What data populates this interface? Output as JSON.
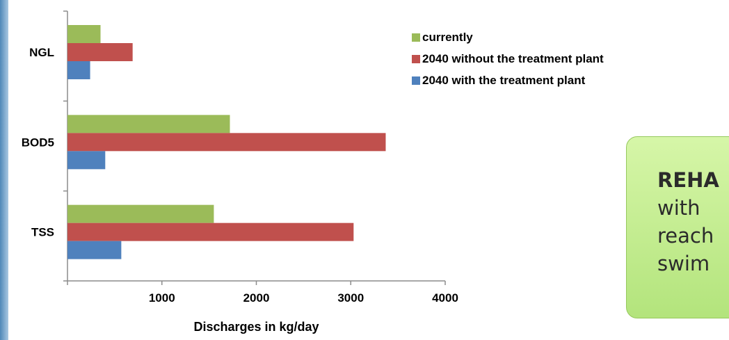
{
  "chart_data": {
    "type": "bar",
    "orientation": "horizontal",
    "categories": [
      "NGL",
      "BOD5",
      "TSS"
    ],
    "series": [
      {
        "name": "currently",
        "color": "#9bbb59",
        "values": [
          350,
          1720,
          1550
        ]
      },
      {
        "name": "2040 without the treatment plant",
        "color": "#c0504d",
        "values": [
          690,
          3370,
          3030
        ]
      },
      {
        "name": "2040 with the treatment plant",
        "color": "#4f81bd",
        "values": [
          240,
          400,
          570
        ]
      }
    ],
    "xticks": [
      "1000",
      "2000",
      "3000",
      "4000"
    ],
    "xlim": [
      0,
      4000
    ],
    "xlabel": "Discharges in kg/day",
    "ylabel": "",
    "title": "",
    "grid": false,
    "legend_position": "top-right"
  },
  "callout": {
    "lines": [
      "REHA",
      "with",
      "reach",
      "swim"
    ]
  }
}
